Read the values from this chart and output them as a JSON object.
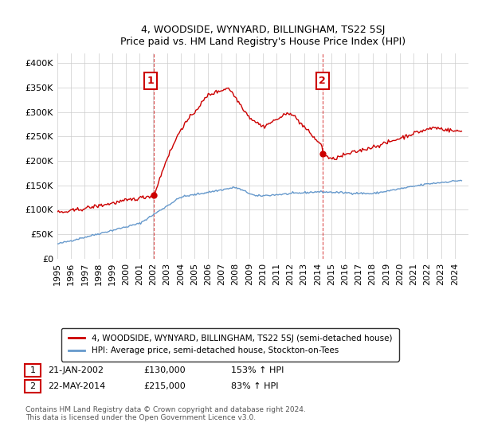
{
  "title": "4, WOODSIDE, WYNYARD, BILLINGHAM, TS22 5SJ",
  "subtitle": "Price paid vs. HM Land Registry's House Price Index (HPI)",
  "sale1_date": "21-JAN-2002",
  "sale1_price": 130000,
  "sale1_label": "1",
  "sale1_hpi": "153% ↑ HPI",
  "sale2_date": "22-MAY-2014",
  "sale2_price": 215000,
  "sale2_label": "2",
  "sale2_hpi": "83% ↑ HPI",
  "legend_line1": "4, WOODSIDE, WYNYARD, BILLINGHAM, TS22 5SJ (semi-detached house)",
  "legend_line2": "HPI: Average price, semi-detached house, Stockton-on-Tees",
  "footer": "Contains HM Land Registry data © Crown copyright and database right 2024.\nThis data is licensed under the Open Government Licence v3.0.",
  "red_color": "#cc0000",
  "blue_color": "#6699cc",
  "vline_color": "#cc0000",
  "ylim": [
    0,
    420000
  ],
  "yticks": [
    0,
    50000,
    100000,
    150000,
    200000,
    250000,
    300000,
    350000,
    400000
  ],
  "background": "#ffffff",
  "grid_color": "#cccccc"
}
